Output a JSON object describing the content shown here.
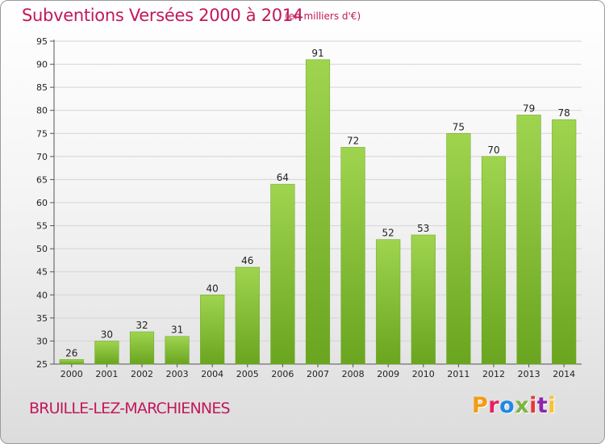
{
  "header": {
    "title": "Subventions Versées 2000 à 2014",
    "subtitle": "(en milliers d'€)"
  },
  "footer": {
    "commune": "BRUILLE-LEZ-MARCHIENNES",
    "logo_text": "Proxiti",
    "logo_colors": [
      "#f39c12",
      "#e91e63",
      "#1e88e5",
      "#7cb342",
      "#e53935",
      "#8e24aa",
      "#fbc02d"
    ]
  },
  "chart_data": {
    "type": "bar",
    "categories": [
      "2000",
      "2001",
      "2002",
      "2003",
      "2004",
      "2005",
      "2006",
      "2007",
      "2008",
      "2009",
      "2010",
      "2011",
      "2012",
      "2013",
      "2014"
    ],
    "values": [
      26,
      30,
      32,
      31,
      40,
      46,
      64,
      91,
      72,
      52,
      53,
      75,
      70,
      79,
      78
    ],
    "ylim": [
      25,
      95
    ],
    "yticks": [
      25,
      30,
      35,
      40,
      45,
      50,
      55,
      60,
      65,
      70,
      75,
      80,
      85,
      90,
      95
    ],
    "grid": true,
    "bar_color": "#8cc63f",
    "bar_color_light": "#9fd44f",
    "bar_color_dark": "#6aa520"
  }
}
